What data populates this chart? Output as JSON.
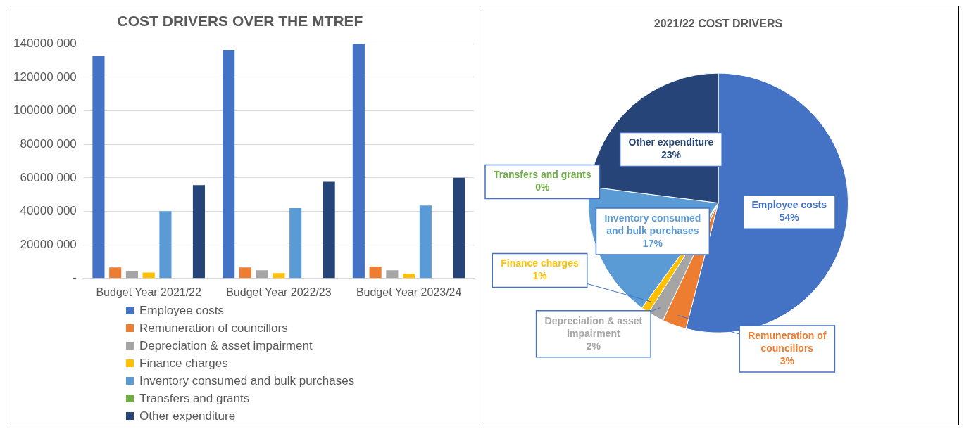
{
  "chart_data": [
    {
      "type": "bar",
      "title": "COST DRIVERS OVER THE MTREF",
      "categories": [
        "Budget Year 2021/22",
        "Budget Year 2022/23",
        "Budget Year 2023/24"
      ],
      "series": [
        {
          "name": "Employee costs",
          "color": "#4472c4",
          "values": [
            132600000,
            136300000,
            140000000
          ]
        },
        {
          "name": "Remuneration of councillors",
          "color": "#ed7d31",
          "values": [
            6500000,
            6500000,
            7000000
          ]
        },
        {
          "name": "Depreciation & asset impairment",
          "color": "#a5a5a5",
          "values": [
            4400000,
            4800000,
            4800000
          ]
        },
        {
          "name": "Finance charges",
          "color": "#ffc000",
          "values": [
            3500000,
            3200000,
            2800000
          ]
        },
        {
          "name": "Inventory consumed and bulk purchases",
          "color": "#5b9bd5",
          "values": [
            40100000,
            41900000,
            43500000
          ]
        },
        {
          "name": "Transfers and grants",
          "color": "#70ad47",
          "values": [
            0,
            0,
            0
          ]
        },
        {
          "name": "Other expenditure",
          "color": "#264478",
          "values": [
            55600000,
            57600000,
            60000000
          ]
        }
      ],
      "ylim": [
        0,
        140000000
      ],
      "yticks": [
        {
          "value": 0,
          "label": "-"
        },
        {
          "value": 20000000,
          "label": "20000 000"
        },
        {
          "value": 40000000,
          "label": "40000 000"
        },
        {
          "value": 60000000,
          "label": "60000 000"
        },
        {
          "value": 80000000,
          "label": "80000 000"
        },
        {
          "value": 100000000,
          "label": "100000 000"
        },
        {
          "value": 120000000,
          "label": "120000 000"
        },
        {
          "value": 140000000,
          "label": "140000 000"
        }
      ],
      "grid": "y",
      "legend": "bottom"
    },
    {
      "type": "pie",
      "title": "2021/22 COST DRIVERS",
      "categories": [
        "Employee costs",
        "Remuneration of councillors",
        "Depreciation & asset impairment",
        "Finance charges",
        "Inventory consumed and bulk purchases",
        "Transfers and grants",
        "Other expenditure"
      ],
      "values": [
        54,
        3,
        2,
        1,
        17,
        0,
        23
      ],
      "value_labels": [
        "54%",
        "3%",
        "2%",
        "1%",
        "17%",
        "0%",
        "23%"
      ],
      "colors": [
        "#4472c4",
        "#ed7d31",
        "#a5a5a5",
        "#ffc000",
        "#5b9bd5",
        "#70ad47",
        "#264478"
      ]
    }
  ]
}
